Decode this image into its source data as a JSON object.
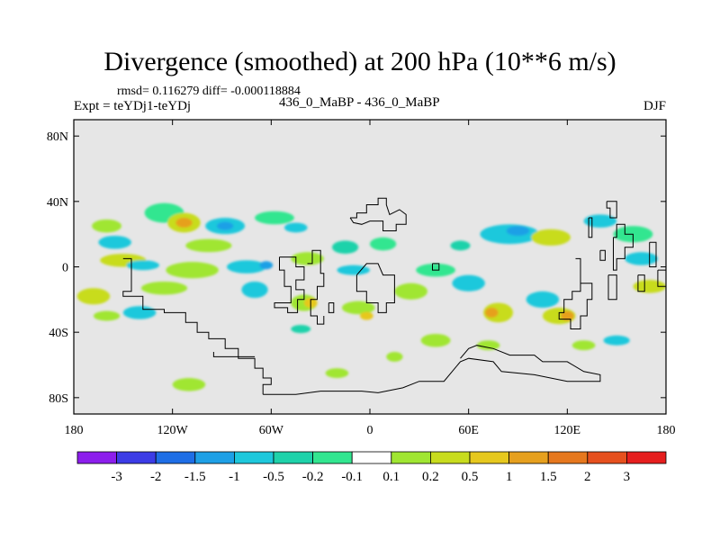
{
  "title": "Divergence (smoothed) at 200 hPa (10**6 m/s)",
  "stats": "rmsd= 0.116279 diff= -0.000118884",
  "experiment": "Expt = teYDj1-teYDj",
  "center_label": "436_0_MaBP - 436_0_MaBP",
  "season": "DJF",
  "chart_data": {
    "type": "heatmap",
    "title": "Divergence (smoothed) at 200 hPa (10**6 m/s)",
    "xlabel": "",
    "ylabel": "",
    "xlim": [
      -180,
      180
    ],
    "ylim": [
      -90,
      90
    ],
    "x_ticks": [
      {
        "value": -180,
        "label": "180"
      },
      {
        "value": -120,
        "label": "120W"
      },
      {
        "value": -60,
        "label": "60W"
      },
      {
        "value": 0,
        "label": "0"
      },
      {
        "value": 60,
        "label": "60E"
      },
      {
        "value": 120,
        "label": "120E"
      },
      {
        "value": 180,
        "label": "180"
      }
    ],
    "y_ticks": [
      {
        "value": 80,
        "label": "80N"
      },
      {
        "value": 40,
        "label": "40N"
      },
      {
        "value": 0,
        "label": "0"
      },
      {
        "value": -40,
        "label": "40S"
      },
      {
        "value": -80,
        "label": "80S"
      }
    ],
    "background_color": "#e6e6e6",
    "colorbar": {
      "colors": [
        "#8c1eec",
        "#3c3ce6",
        "#1e6ee6",
        "#1ea0e6",
        "#1ec8dc",
        "#1ed2aa",
        "#32e690",
        "#ffffff",
        "#a0e632",
        "#c8dc1e",
        "#e6c81e",
        "#e6a01e",
        "#e6781e",
        "#e6501e",
        "#e61e1e"
      ],
      "labels": [
        "-3",
        "-2",
        "-1.5",
        "-1",
        "-0.5",
        "-0.2",
        "-0.1",
        "0.1",
        "0.2",
        "0.5",
        "1",
        "1.5",
        "2",
        "3"
      ]
    },
    "blobs": [
      {
        "lon": -160,
        "lat": 25,
        "rx": 9,
        "ry": 4,
        "color": "#a0e632"
      },
      {
        "lon": -155,
        "lat": 15,
        "rx": 10,
        "ry": 4,
        "color": "#1ec8dc"
      },
      {
        "lon": -125,
        "lat": 33,
        "rx": 12,
        "ry": 6,
        "color": "#32e690"
      },
      {
        "lon": -113,
        "lat": 27,
        "rx": 10,
        "ry": 6,
        "color": "#c8dc1e"
      },
      {
        "lon": -113,
        "lat": 27,
        "rx": 5,
        "ry": 3,
        "color": "#e6a01e"
      },
      {
        "lon": -88,
        "lat": 25,
        "rx": 12,
        "ry": 5,
        "color": "#1ec8dc"
      },
      {
        "lon": -88,
        "lat": 25,
        "rx": 5,
        "ry": 2.5,
        "color": "#1ea0e6"
      },
      {
        "lon": -98,
        "lat": 13,
        "rx": 14,
        "ry": 4,
        "color": "#a0e632"
      },
      {
        "lon": -150,
        "lat": 4,
        "rx": 14,
        "ry": 4,
        "color": "#c8dc1e"
      },
      {
        "lon": -138,
        "lat": 1,
        "rx": 10,
        "ry": 3,
        "color": "#1ec8dc"
      },
      {
        "lon": -108,
        "lat": -2,
        "rx": 16,
        "ry": 5,
        "color": "#a0e632"
      },
      {
        "lon": -75,
        "lat": 0,
        "rx": 12,
        "ry": 4,
        "color": "#1ec8dc"
      },
      {
        "lon": -63,
        "lat": 1,
        "rx": 4,
        "ry": 2.5,
        "color": "#1ea0e6"
      },
      {
        "lon": -58,
        "lat": 30,
        "rx": 12,
        "ry": 4,
        "color": "#32e690"
      },
      {
        "lon": -45,
        "lat": 24,
        "rx": 7,
        "ry": 3,
        "color": "#1ec8dc"
      },
      {
        "lon": -38,
        "lat": 5,
        "rx": 10,
        "ry": 4,
        "color": "#a0e632"
      },
      {
        "lon": -15,
        "lat": 12,
        "rx": 8,
        "ry": 4,
        "color": "#1ed2aa"
      },
      {
        "lon": -168,
        "lat": -18,
        "rx": 10,
        "ry": 5,
        "color": "#c8dc1e"
      },
      {
        "lon": -160,
        "lat": -30,
        "rx": 8,
        "ry": 3,
        "color": "#a0e632"
      },
      {
        "lon": -140,
        "lat": -28,
        "rx": 10,
        "ry": 4,
        "color": "#1ec8dc"
      },
      {
        "lon": -125,
        "lat": -13,
        "rx": 14,
        "ry": 4,
        "color": "#a0e632"
      },
      {
        "lon": -70,
        "lat": -14,
        "rx": 8,
        "ry": 5,
        "color": "#1ec8dc"
      },
      {
        "lon": -40,
        "lat": -22,
        "rx": 8,
        "ry": 5,
        "color": "#a0e632"
      },
      {
        "lon": -36,
        "lat": -22,
        "rx": 4,
        "ry": 3,
        "color": "#e6c81e"
      },
      {
        "lon": -42,
        "lat": -38,
        "rx": 6,
        "ry": 2.5,
        "color": "#1ed2aa"
      },
      {
        "lon": -10,
        "lat": -2,
        "rx": 10,
        "ry": 3,
        "color": "#1ec8dc"
      },
      {
        "lon": -7,
        "lat": -25,
        "rx": 10,
        "ry": 4,
        "color": "#a0e632"
      },
      {
        "lon": -2,
        "lat": -30,
        "rx": 4,
        "ry": 2.5,
        "color": "#e6c81e"
      },
      {
        "lon": -110,
        "lat": -72,
        "rx": 10,
        "ry": 4,
        "color": "#a0e632"
      },
      {
        "lon": -20,
        "lat": -65,
        "rx": 7,
        "ry": 3,
        "color": "#a0e632"
      },
      {
        "lon": 15,
        "lat": -55,
        "rx": 5,
        "ry": 3,
        "color": "#a0e632"
      },
      {
        "lon": 8,
        "lat": 14,
        "rx": 8,
        "ry": 4,
        "color": "#32e690"
      },
      {
        "lon": 40,
        "lat": -2,
        "rx": 12,
        "ry": 4,
        "color": "#32e690"
      },
      {
        "lon": 25,
        "lat": -15,
        "rx": 10,
        "ry": 5,
        "color": "#a0e632"
      },
      {
        "lon": 55,
        "lat": 13,
        "rx": 6,
        "ry": 3,
        "color": "#1ed2aa"
      },
      {
        "lon": 85,
        "lat": 20,
        "rx": 18,
        "ry": 6,
        "color": "#1ec8dc"
      },
      {
        "lon": 90,
        "lat": 22,
        "rx": 7,
        "ry": 3,
        "color": "#1ea0e6"
      },
      {
        "lon": 110,
        "lat": 18,
        "rx": 12,
        "ry": 5,
        "color": "#c8dc1e"
      },
      {
        "lon": 140,
        "lat": 28,
        "rx": 10,
        "ry": 4,
        "color": "#1ec8dc"
      },
      {
        "lon": 160,
        "lat": 20,
        "rx": 12,
        "ry": 5,
        "color": "#32e690"
      },
      {
        "lon": 165,
        "lat": 5,
        "rx": 10,
        "ry": 4,
        "color": "#1ec8dc"
      },
      {
        "lon": 60,
        "lat": -10,
        "rx": 10,
        "ry": 5,
        "color": "#1ec8dc"
      },
      {
        "lon": 78,
        "lat": -28,
        "rx": 9,
        "ry": 6,
        "color": "#c8dc1e"
      },
      {
        "lon": 74,
        "lat": -28,
        "rx": 4,
        "ry": 3,
        "color": "#e6a01e"
      },
      {
        "lon": 105,
        "lat": -20,
        "rx": 10,
        "ry": 5,
        "color": "#1ec8dc"
      },
      {
        "lon": 115,
        "lat": -30,
        "rx": 10,
        "ry": 5,
        "color": "#c8dc1e"
      },
      {
        "lon": 120,
        "lat": -30,
        "rx": 4,
        "ry": 3,
        "color": "#e6a01e"
      },
      {
        "lon": 170,
        "lat": -12,
        "rx": 10,
        "ry": 4,
        "color": "#c8dc1e"
      },
      {
        "lon": 150,
        "lat": -45,
        "rx": 8,
        "ry": 3,
        "color": "#1ec8dc"
      },
      {
        "lon": 130,
        "lat": -48,
        "rx": 7,
        "ry": 3,
        "color": "#a0e632"
      },
      {
        "lon": 40,
        "lat": -45,
        "rx": 9,
        "ry": 4,
        "color": "#a0e632"
      },
      {
        "lon": 72,
        "lat": -48,
        "rx": 7,
        "ry": 3,
        "color": "#a0e632"
      }
    ],
    "coastlines": [
      [
        [
          -150,
          5
        ],
        [
          -145,
          5
        ],
        [
          -145,
          -15
        ],
        [
          -150,
          -15
        ],
        [
          -150,
          -18
        ],
        [
          -138,
          -18
        ],
        [
          -138,
          -26
        ],
        [
          -125,
          -26
        ],
        [
          -125,
          -28
        ],
        [
          -112,
          -28
        ],
        [
          -112,
          -34
        ],
        [
          -105,
          -34
        ],
        [
          -105,
          -40
        ],
        [
          -98,
          -40
        ],
        [
          -98,
          -44
        ],
        [
          -88,
          -44
        ],
        [
          -88,
          -50
        ],
        [
          -80,
          -50
        ],
        [
          -80,
          -56
        ],
        [
          -70,
          -56
        ],
        [
          -70,
          -62
        ],
        [
          -65,
          -62
        ],
        [
          -65,
          -68
        ],
        [
          -60,
          -68
        ],
        [
          -60,
          -72
        ],
        [
          -65,
          -72
        ],
        [
          -65,
          -78
        ]
      ],
      [
        [
          -95,
          -52
        ],
        [
          -95,
          -55
        ],
        [
          -70,
          -55
        ]
      ],
      [
        [
          -65,
          -78
        ],
        [
          -45,
          -78
        ],
        [
          -30,
          -76
        ],
        [
          -5,
          -76
        ],
        [
          5,
          -77
        ],
        [
          20,
          -74
        ],
        [
          30,
          -70
        ],
        [
          45,
          -70
        ],
        [
          55,
          -58
        ],
        [
          60,
          -56
        ],
        [
          75,
          -58
        ],
        [
          80,
          -64
        ],
        [
          100,
          -66
        ],
        [
          120,
          -70
        ],
        [
          140,
          -70
        ],
        [
          140,
          -66
        ],
        [
          130,
          -64
        ],
        [
          120,
          -58
        ],
        [
          105,
          -58
        ],
        [
          100,
          -54
        ],
        [
          85,
          -54
        ],
        [
          75,
          -50
        ],
        [
          65,
          -48
        ],
        [
          60,
          -50
        ],
        [
          55,
          -56
        ]
      ],
      [
        [
          -55,
          6
        ],
        [
          -45,
          6
        ],
        [
          -45,
          0
        ],
        [
          -40,
          0
        ],
        [
          -40,
          -8
        ],
        [
          -45,
          -8
        ],
        [
          -45,
          -14
        ],
        [
          -40,
          -14
        ],
        [
          -40,
          -20
        ],
        [
          -44,
          -20
        ],
        [
          -44,
          -28
        ],
        [
          -50,
          -28
        ],
        [
          -50,
          -25
        ],
        [
          -58,
          -25
        ],
        [
          -58,
          -22
        ],
        [
          -48,
          -22
        ],
        [
          -48,
          -12
        ],
        [
          -52,
          -12
        ],
        [
          -52,
          -2
        ],
        [
          -55,
          -2
        ],
        [
          -55,
          6
        ]
      ],
      [
        [
          -38,
          2
        ],
        [
          -35,
          2
        ],
        [
          -35,
          10
        ],
        [
          -30,
          10
        ],
        [
          -30,
          -4
        ],
        [
          -28,
          -4
        ],
        [
          -28,
          -12
        ],
        [
          -32,
          -12
        ],
        [
          -32,
          -20
        ],
        [
          -36,
          -20
        ],
        [
          -36,
          -30
        ],
        [
          -32,
          -30
        ],
        [
          -32,
          -35
        ],
        [
          -28,
          -35
        ],
        [
          -28,
          -30
        ]
      ],
      [
        [
          -25,
          -22
        ],
        [
          -22,
          -22
        ],
        [
          -22,
          -28
        ],
        [
          -25,
          -28
        ],
        [
          -25,
          -22
        ]
      ],
      [
        [
          -8,
          -5
        ],
        [
          -8,
          -15
        ],
        [
          -2,
          -15
        ],
        [
          -2,
          -22
        ],
        [
          5,
          -22
        ],
        [
          5,
          -28
        ],
        [
          10,
          -28
        ],
        [
          10,
          -22
        ],
        [
          15,
          -22
        ],
        [
          15,
          -5
        ],
        [
          8,
          -5
        ],
        [
          5,
          2
        ],
        [
          -2,
          2
        ],
        [
          -8,
          -5
        ]
      ],
      [
        [
          -12,
          30
        ],
        [
          -8,
          30
        ],
        [
          -8,
          33
        ],
        [
          -2,
          33
        ],
        [
          -2,
          38
        ],
        [
          5,
          38
        ],
        [
          5,
          42
        ],
        [
          10,
          42
        ],
        [
          10,
          38
        ],
        [
          12,
          32
        ],
        [
          18,
          35
        ],
        [
          22,
          32
        ],
        [
          22,
          26
        ],
        [
          16,
          26
        ],
        [
          16,
          22
        ],
        [
          8,
          22
        ],
        [
          8,
          28
        ],
        [
          0,
          28
        ],
        [
          -5,
          26
        ],
        [
          -10,
          27
        ],
        [
          -12,
          30
        ]
      ],
      [
        [
          38,
          2
        ],
        [
          42,
          2
        ],
        [
          42,
          -2
        ],
        [
          38,
          -2
        ],
        [
          38,
          2
        ]
      ],
      [
        [
          133,
          30
        ],
        [
          135,
          30
        ],
        [
          135,
          18
        ],
        [
          133,
          18
        ],
        [
          133,
          30
        ]
      ],
      [
        [
          140,
          10
        ],
        [
          143,
          10
        ],
        [
          143,
          4
        ],
        [
          140,
          4
        ],
        [
          140,
          10
        ]
      ],
      [
        [
          148,
          18
        ],
        [
          150,
          18
        ],
        [
          150,
          26
        ],
        [
          155,
          26
        ],
        [
          155,
          20
        ],
        [
          160,
          20
        ],
        [
          160,
          12
        ],
        [
          155,
          12
        ],
        [
          155,
          5
        ],
        [
          150,
          5
        ],
        [
          150,
          -2
        ],
        [
          148,
          -2
        ],
        [
          148,
          18
        ]
      ],
      [
        [
          125,
          5
        ],
        [
          128,
          5
        ],
        [
          128,
          -15
        ],
        [
          123,
          -15
        ],
        [
          123,
          -20
        ],
        [
          118,
          -20
        ],
        [
          118,
          -28
        ],
        [
          115,
          -28
        ],
        [
          115,
          -32
        ],
        [
          122,
          -32
        ],
        [
          122,
          -38
        ],
        [
          128,
          -38
        ],
        [
          128,
          -30
        ],
        [
          132,
          -30
        ],
        [
          132,
          -20
        ],
        [
          135,
          -20
        ],
        [
          135,
          -10
        ],
        [
          128,
          -10
        ]
      ],
      [
        [
          145,
          -5
        ],
        [
          150,
          -5
        ],
        [
          150,
          -20
        ],
        [
          145,
          -20
        ],
        [
          145,
          -5
        ]
      ],
      [
        [
          163,
          -5
        ],
        [
          167,
          -5
        ],
        [
          167,
          -15
        ],
        [
          163,
          -15
        ],
        [
          163,
          -5
        ]
      ],
      [
        [
          170,
          15
        ],
        [
          174,
          15
        ],
        [
          174,
          0
        ],
        [
          170,
          0
        ],
        [
          170,
          15
        ]
      ],
      [
        [
          175,
          -2
        ],
        [
          180,
          -2
        ],
        [
          180,
          -12
        ],
        [
          175,
          -12
        ],
        [
          175,
          -2
        ]
      ],
      [
        [
          144,
          40
        ],
        [
          150,
          40
        ],
        [
          150,
          30
        ],
        [
          146,
          30
        ],
        [
          146,
          36
        ],
        [
          144,
          36
        ],
        [
          144,
          40
        ]
      ]
    ]
  }
}
